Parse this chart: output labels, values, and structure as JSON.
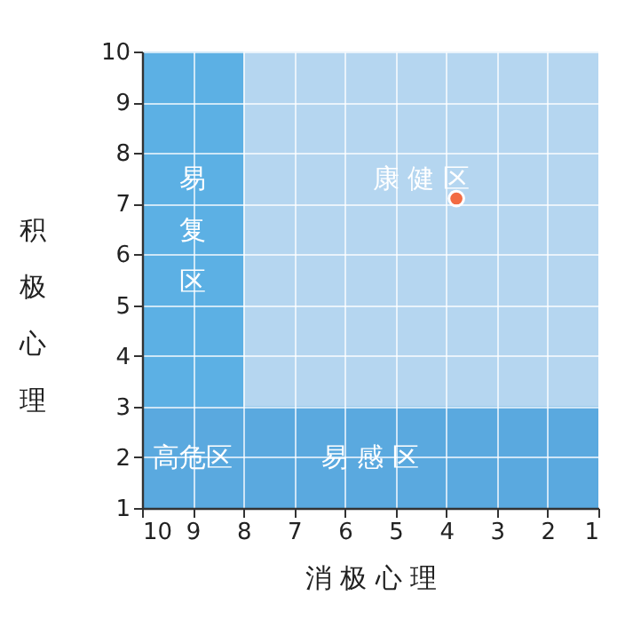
{
  "chart_data": {
    "type": "scatter",
    "xlabel": "消极心理",
    "ylabel": "积极心理",
    "x": [
      3.8
    ],
    "values": [
      7.1
    ],
    "color": "#f26b43",
    "xlim": [
      10,
      1
    ],
    "xticks": [
      10,
      9,
      8,
      7,
      6,
      5,
      4,
      3,
      2,
      1
    ],
    "ylim": [
      1,
      10
    ],
    "yticks": [
      1,
      2,
      3,
      4,
      5,
      6,
      7,
      8,
      9,
      10
    ],
    "grid": true,
    "marker": "circle",
    "bands": [
      {
        "axis": "x",
        "from": 8,
        "to": 1,
        "label": "康健区",
        "color": "#b5d6f0"
      },
      {
        "axis": "x",
        "from": 10,
        "to": 8,
        "label": "易复区",
        "color": "#5cb0e4"
      },
      {
        "axis": "y",
        "from": 1,
        "to": 3,
        "label": "易感区",
        "color": "#5aa9df"
      }
    ],
    "annotations": [
      "高危区"
    ]
  }
}
